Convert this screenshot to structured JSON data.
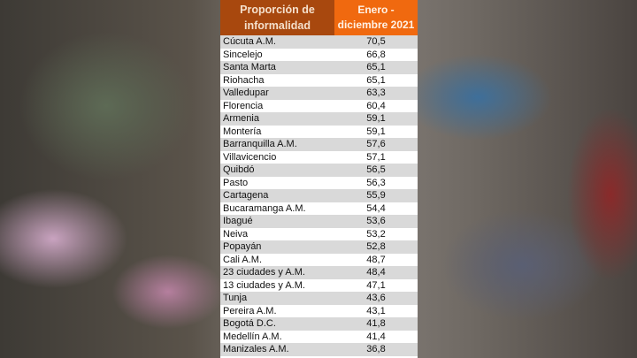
{
  "table": {
    "header": {
      "col1": "Proporción de informalidad",
      "col2": "Enero - diciembre 2021"
    },
    "rows": [
      {
        "city": "Cúcuta A.M.",
        "value": "70,5"
      },
      {
        "city": "Sincelejo",
        "value": "66,8"
      },
      {
        "city": "Santa Marta",
        "value": "65,1"
      },
      {
        "city": "Riohacha",
        "value": "65,1"
      },
      {
        "city": "Valledupar",
        "value": "63,3"
      },
      {
        "city": "Florencia",
        "value": "60,4"
      },
      {
        "city": "Armenia",
        "value": "59,1"
      },
      {
        "city": "Montería",
        "value": "59,1"
      },
      {
        "city": "Barranquilla A.M.",
        "value": "57,6"
      },
      {
        "city": "Villavicencio",
        "value": "57,1"
      },
      {
        "city": "Quibdó",
        "value": "56,5"
      },
      {
        "city": "Pasto",
        "value": "56,3"
      },
      {
        "city": "Cartagena",
        "value": "55,9"
      },
      {
        "city": "Bucaramanga A.M.",
        "value": "54,4"
      },
      {
        "city": "Ibagué",
        "value": "53,6"
      },
      {
        "city": "Neiva",
        "value": "53,2"
      },
      {
        "city": "Popayán",
        "value": "52,8"
      },
      {
        "city": "Cali A.M.",
        "value": "48,7"
      },
      {
        "city": "23 ciudades y A.M.",
        "value": "48,4"
      },
      {
        "city": "13 ciudades y A.M.",
        "value": "47,1"
      },
      {
        "city": "Tunja",
        "value": "43,6"
      },
      {
        "city": "Pereira A.M.",
        "value": "43,1"
      },
      {
        "city": "Bogotá D.C.",
        "value": "41,8"
      },
      {
        "city": "Medellín A.M.",
        "value": "41,4"
      },
      {
        "city": "Manizales A.M.",
        "value": "36,8"
      }
    ]
  },
  "colors": {
    "header_left": "#a8480e",
    "header_right": "#f0690f",
    "row_alt": "#d9d9d9"
  }
}
